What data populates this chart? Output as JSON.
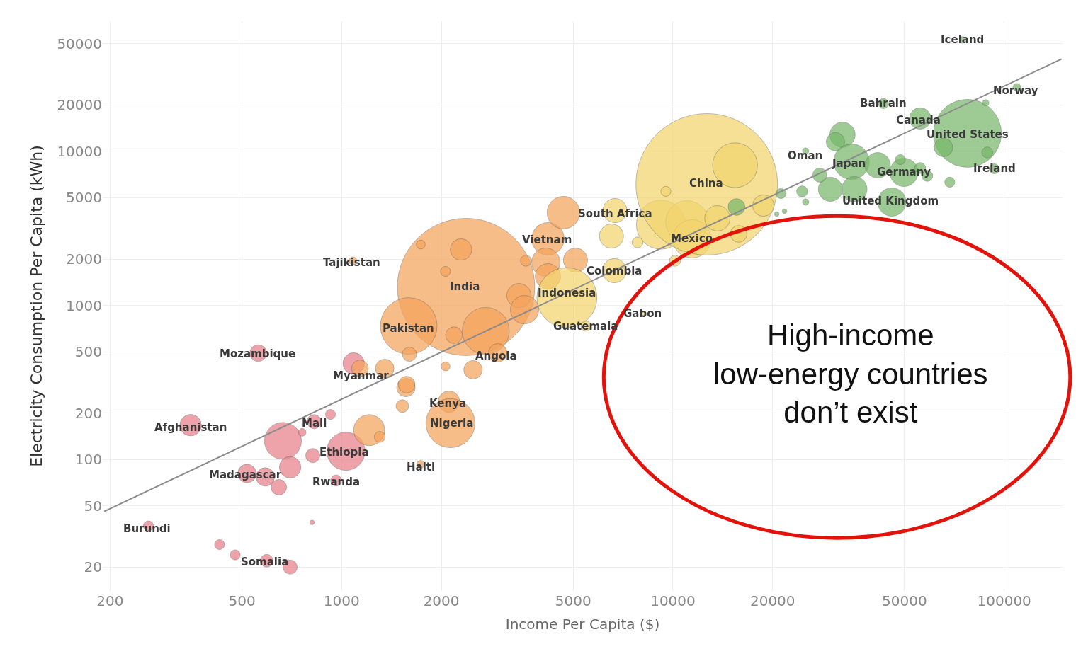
{
  "chart_data": {
    "type": "bubble",
    "xlabel": "Income Per Capita ($)",
    "ylabel": "Electricity Consumption Per Capita (kWh)",
    "log": "xy",
    "grid": true,
    "xlim": [
      190,
      150000
    ],
    "ylim": [
      14,
      70000
    ],
    "xticks": [
      200,
      500,
      1000,
      2000,
      5000,
      10000,
      20000,
      50000,
      100000
    ],
    "yticks": [
      20,
      50,
      100,
      200,
      500,
      1000,
      2000,
      5000,
      10000,
      20000,
      50000
    ],
    "series": [
      {
        "color": "#e8808a",
        "x": [
          560,
          350,
          665,
          826,
          925,
          760,
          1030,
          818,
          699,
          518,
          588,
          646,
          962,
          814,
          261,
          428,
          477,
          594,
          699,
          1087
        ],
        "values": [
          490,
          167,
          132,
          176,
          196,
          150,
          113,
          106,
          89,
          81,
          77,
          66,
          73,
          39,
          37,
          28,
          24,
          22,
          20,
          420
        ],
        "sizes": [
          0.014,
          0.023,
          0.068,
          0.01,
          0.005,
          0.003,
          0.073,
          0.01,
          0.023,
          0.017,
          0.017,
          0.012,
          0.006,
          0.001,
          0.005,
          0.005,
          0.005,
          0.008,
          0.01,
          0.023
        ]
      },
      {
        "color": "#f5a45c",
        "x": [
          1136,
          1349,
          1563,
          1525,
          1211,
          1303,
          1081,
          2374,
          2293,
          1733,
          2058,
          1594,
          2723,
          2183,
          2959,
          2492,
          2058,
          1601,
          2109,
          2130,
          1733,
          1571,
          3428,
          3566,
          3600,
          4194,
          4672,
          5080,
          4134,
          4194
        ],
        "values": [
          390,
          390,
          293,
          222,
          155,
          140,
          1950,
          1318,
          2307,
          2485,
          1663,
          735,
          683,
          641,
          492,
          382,
          402,
          482,
          237,
          172,
          93,
          306,
          1159,
          938,
          1950,
          2705,
          4003,
          1968,
          1907,
          1545
        ],
        "sizes": [
          0.014,
          0.017,
          0.017,
          0.008,
          0.048,
          0.006,
          0.003,
          0.94,
          0.023,
          0.004,
          0.005,
          0.16,
          0.11,
          0.014,
          0.017,
          0.017,
          0.004,
          0.01,
          0.023,
          0.12,
          0.003,
          0.014,
          0.029,
          0.04,
          0.006,
          0.053,
          0.053,
          0.029,
          0.04,
          0.032
        ]
      },
      {
        "color": "#f2d56e",
        "x": [
          4786,
          5466,
          6653,
          8093,
          6683,
          6524,
          9200,
          11030,
          11420,
          12650,
          15400,
          13620,
          10150,
          9520,
          7820,
          18750,
          15790
        ],
        "values": [
          1123,
          735,
          1680,
          890,
          4130,
          2820,
          3344,
          3490,
          2705,
          6110,
          8130,
          3679,
          1950,
          5500,
          2566,
          4449,
          2912
        ],
        "sizes": [
          0.18,
          0.005,
          0.029,
          0.001,
          0.029,
          0.029,
          0.12,
          0.09,
          0.073,
          1,
          0.1,
          0.032,
          0.006,
          0.005,
          0.006,
          0.023,
          0.014
        ]
      },
      {
        "color": "#78b86a",
        "x": [
          15560,
          43200,
          55760,
          77450,
          65580,
          88900,
          93300,
          109200,
          88000,
          68500,
          32500,
          30950,
          34600,
          41500,
          29880,
          35300,
          45800,
          49800,
          55760,
          58600,
          48600,
          27750,
          24550,
          21200,
          25150,
          21720,
          20580,
          25150,
          74860
        ],
        "values": [
          4355,
          20430,
          16360,
          13100,
          10600,
          9840,
          7713,
          26060,
          20650,
          6310,
          12820,
          11540,
          8576,
          8130,
          5676,
          5676,
          4692,
          7316,
          7800,
          6936,
          8850,
          7015,
          5500,
          5325,
          4692,
          4087,
          3920,
          10050,
          53000
        ],
        "sizes": [
          0.014,
          0.005,
          0.023,
          0.23,
          0.017,
          0.006,
          0.005,
          0.003,
          0.002,
          0.005,
          0.032,
          0.017,
          0.063,
          0.032,
          0.029,
          0.032,
          0.04,
          0.04,
          0.006,
          0.006,
          0.005,
          0.01,
          0.006,
          0.005,
          0.002,
          0.001,
          0.001,
          0.002,
          0.002
        ]
      },
      {
        "type": "line",
        "marker": "none",
        "color": "#8c8c8c",
        "x": [
          192,
          149000
        ],
        "values": [
          46,
          39800
        ]
      }
    ],
    "annotations": [
      {
        "text": "Iceland",
        "x": 74860,
        "y": 53000
      },
      {
        "text": "Bahrain",
        "x": 43200,
        "y": 20430
      },
      {
        "text": "Norway",
        "x": 108200,
        "y": 24720
      },
      {
        "text": "Canada",
        "x": 55200,
        "y": 15850
      },
      {
        "text": "United States",
        "x": 77450,
        "y": 12820
      },
      {
        "text": "Oman",
        "x": 25050,
        "y": 9330
      },
      {
        "text": "Japan",
        "x": 33950,
        "y": 8310
      },
      {
        "text": "Ireland",
        "x": 93300,
        "y": 7713
      },
      {
        "text": "Germany",
        "x": 49800,
        "y": 7316
      },
      {
        "text": "United Kingdom",
        "x": 45400,
        "y": 4740
      },
      {
        "text": "China",
        "x": 12600,
        "y": 6180
      },
      {
        "text": "South Africa",
        "x": 6700,
        "y": 3920
      },
      {
        "text": "Mexico",
        "x": 11420,
        "y": 2705
      },
      {
        "text": "Vietnam",
        "x": 4155,
        "y": 2676
      },
      {
        "text": "Colombia",
        "x": 6630,
        "y": 1663
      },
      {
        "text": "Gabon",
        "x": 8093,
        "y": 890
      },
      {
        "text": "Indonesia",
        "x": 4770,
        "y": 1210
      },
      {
        "text": "Guatemala",
        "x": 5440,
        "y": 735
      },
      {
        "text": "Tajikistan",
        "x": 1071,
        "y": 1888
      },
      {
        "text": "India",
        "x": 2350,
        "y": 1318
      },
      {
        "text": "Pakistan",
        "x": 1587,
        "y": 713
      },
      {
        "text": "Angola",
        "x": 2930,
        "y": 472
      },
      {
        "text": "Mozambique",
        "x": 557,
        "y": 487
      },
      {
        "text": "Myanmar",
        "x": 1141,
        "y": 351
      },
      {
        "text": "Kenya",
        "x": 2090,
        "y": 232
      },
      {
        "text": "Nigeria",
        "x": 2150,
        "y": 171
      },
      {
        "text": "Afghanistan",
        "x": 350,
        "y": 162
      },
      {
        "text": "Mali",
        "x": 826,
        "y": 172
      },
      {
        "text": "Ethiopia",
        "x": 1020,
        "y": 111
      },
      {
        "text": "Haiti",
        "x": 1733,
        "y": 89.5
      },
      {
        "text": "Madagascar",
        "x": 513,
        "y": 79.6
      },
      {
        "text": "Rwanda",
        "x": 962,
        "y": 71.6
      },
      {
        "text": "Burundi",
        "x": 258,
        "y": 35.6
      },
      {
        "text": "Somalia",
        "x": 586,
        "y": 21.7
      },
      "High-income\nlow-energy countries\ndon’t exist"
    ]
  }
}
